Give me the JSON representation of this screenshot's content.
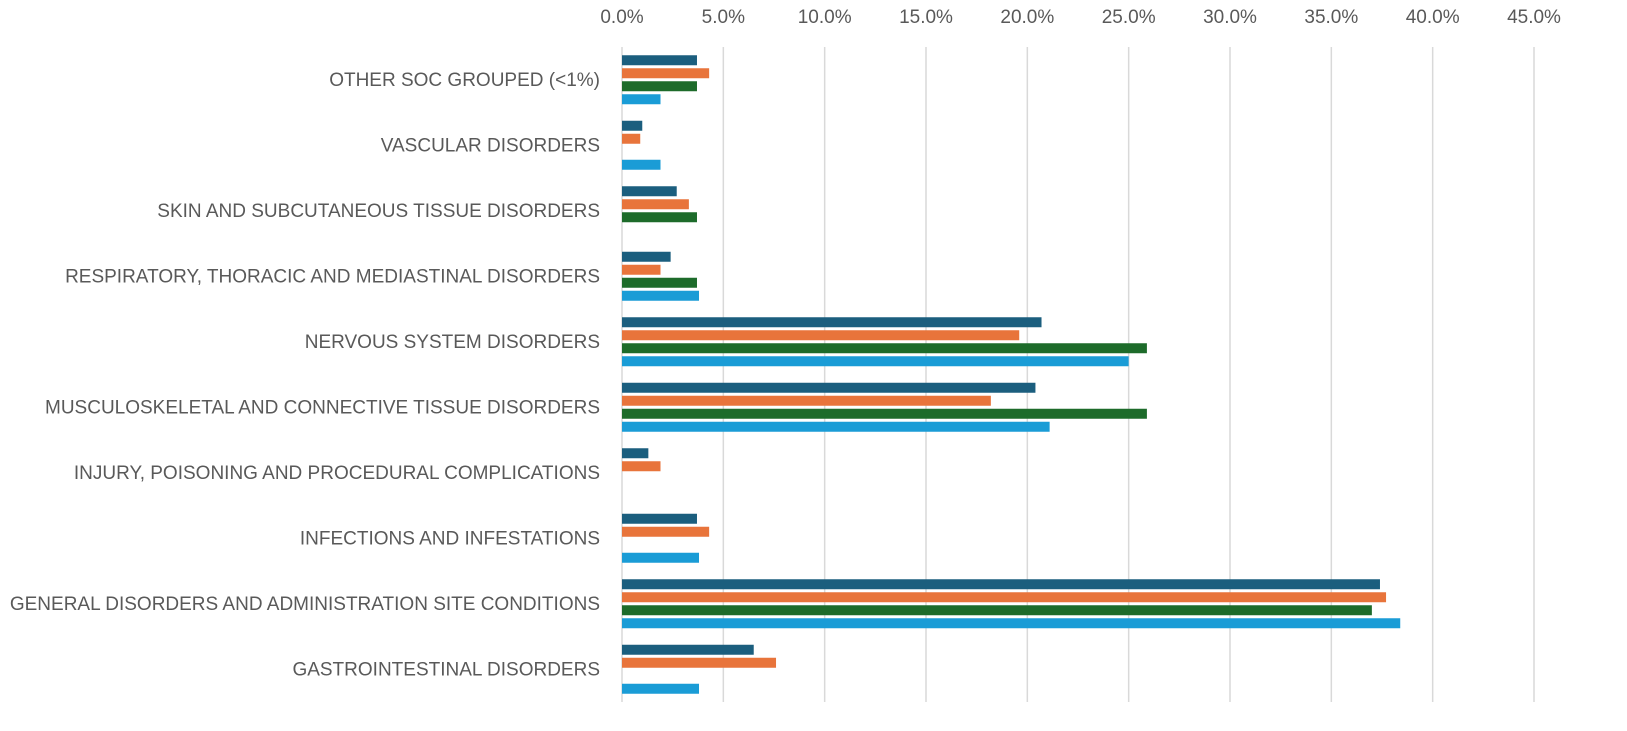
{
  "chart_data": {
    "type": "hbar",
    "categories": [
      "OTHER SOC GROUPED (<1%)",
      "VASCULAR DISORDERS",
      "SKIN AND SUBCUTANEOUS TISSUE DISORDERS",
      "RESPIRATORY, THORACIC AND MEDIASTINAL DISORDERS",
      "NERVOUS SYSTEM DISORDERS",
      "MUSCULOSKELETAL AND CONNECTIVE TISSUE DISORDERS",
      "INJURY, POISONING AND PROCEDURAL COMPLICATIONS",
      "INFECTIONS AND INFESTATIONS",
      "GENERAL DISORDERS AND ADMINISTRATION SITE CONDITIONS",
      "GASTROINTESTINAL DISORDERS"
    ],
    "series": [
      {
        "color": "#1b5e7e",
        "values": [
          3.7,
          1.0,
          2.7,
          2.4,
          20.7,
          20.4,
          1.3,
          3.7,
          37.4,
          6.5
        ]
      },
      {
        "color": "#e8743b",
        "values": [
          4.3,
          0.9,
          3.3,
          1.9,
          19.6,
          18.2,
          1.9,
          4.3,
          37.7,
          7.6
        ]
      },
      {
        "color": "#1d6b2a",
        "values": [
          3.7,
          null,
          3.7,
          3.7,
          25.9,
          25.9,
          null,
          null,
          37.0,
          null
        ]
      },
      {
        "color": "#1a9cd6",
        "values": [
          1.9,
          1.9,
          null,
          3.8,
          25.0,
          21.1,
          null,
          3.8,
          38.4,
          3.8
        ]
      }
    ],
    "xlim": [
      0,
      45
    ],
    "xticks": [
      {
        "value": 0,
        "label": "0.0%"
      },
      {
        "value": 5,
        "label": "5.0%"
      },
      {
        "value": 10,
        "label": "10.0%"
      },
      {
        "value": 15,
        "label": "15.0%"
      },
      {
        "value": 20,
        "label": "20.0%"
      },
      {
        "value": 25,
        "label": "25.0%"
      },
      {
        "value": 30,
        "label": "30.0%"
      },
      {
        "value": 35,
        "label": "35.0%"
      },
      {
        "value": 40,
        "label": "40.0%"
      },
      {
        "value": 45,
        "label": "45.0%"
      }
    ],
    "grid": true
  }
}
